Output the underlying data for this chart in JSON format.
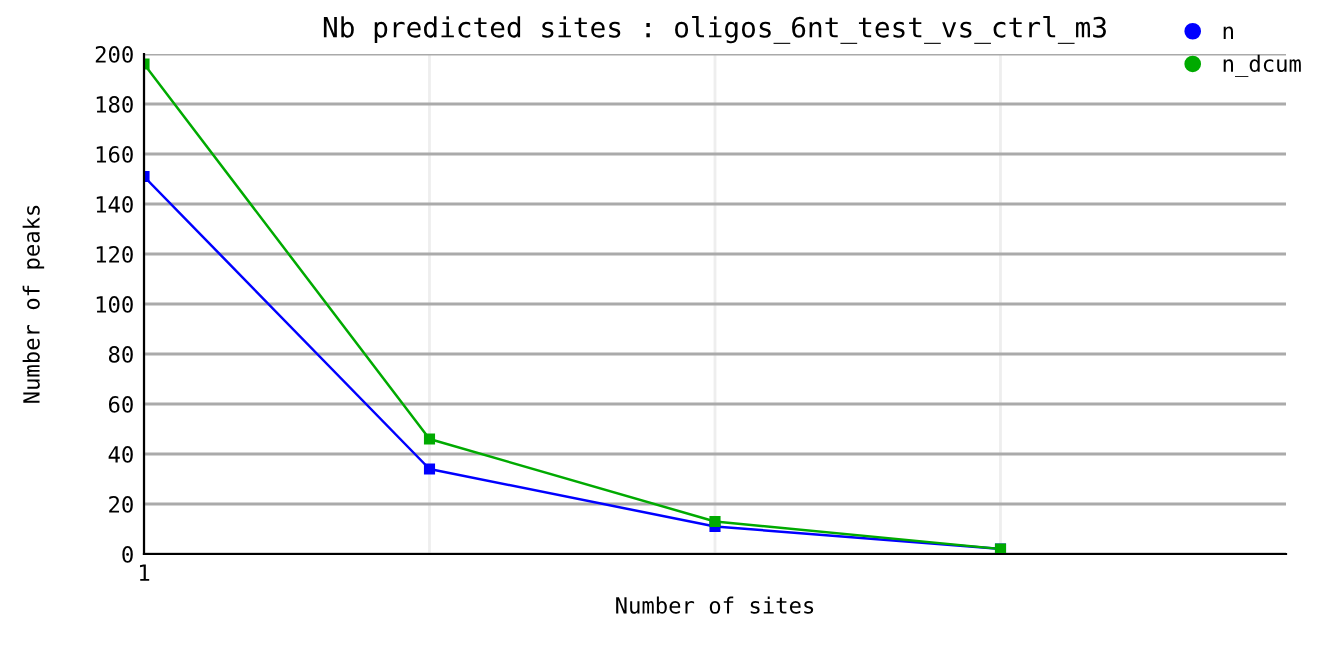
{
  "chart_data": {
    "type": "line",
    "title": "Nb predicted sites : oligos_6nt_test_vs_ctrl_m3",
    "xlabel": "Number of sites",
    "ylabel": "Number of peaks",
    "categories": [
      "1",
      null,
      null,
      null
    ],
    "series": [
      {
        "name": "n",
        "color": "#0000ff",
        "values": [
          151,
          34,
          11,
          2
        ]
      },
      {
        "name": "n_dcum",
        "color": "#00aa00",
        "values": [
          196,
          46,
          13,
          2
        ]
      }
    ],
    "ylim": [
      0,
      200
    ],
    "yticks": [
      0,
      20,
      40,
      60,
      80,
      100,
      120,
      140,
      160,
      180,
      200
    ],
    "grid": true,
    "legend": "top right",
    "marker": "square",
    "line_style": "solid"
  }
}
